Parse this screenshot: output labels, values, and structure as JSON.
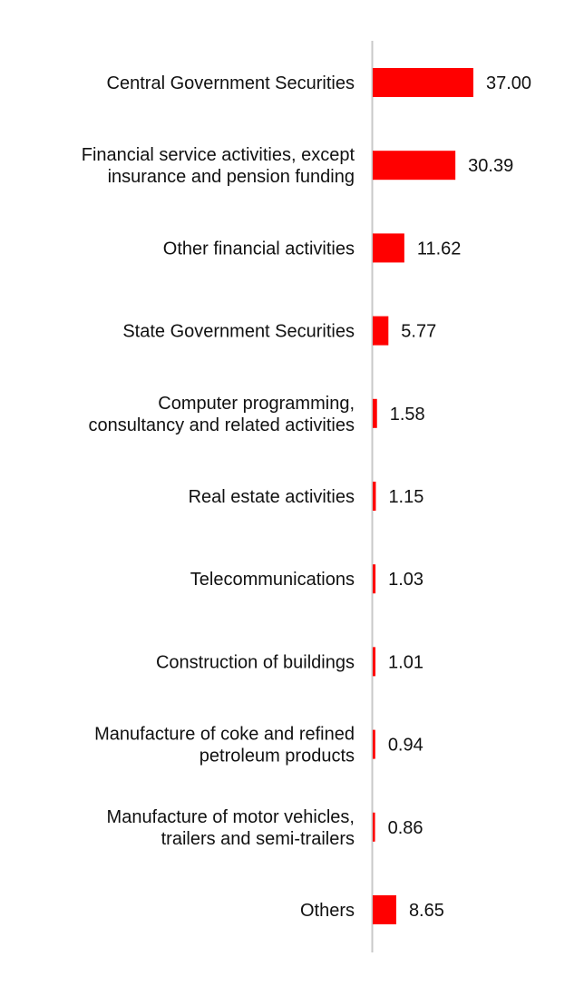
{
  "chart_data": {
    "type": "bar",
    "orientation": "horizontal",
    "title": "",
    "xlabel": "",
    "ylabel": "",
    "grid": false,
    "categories": [
      [
        "Central Government Securities"
      ],
      [
        "Financial service activities, except",
        "insurance and pension funding"
      ],
      [
        "Other financial activities"
      ],
      [
        "State Government Securities"
      ],
      [
        "Computer programming,",
        "consultancy and related activities"
      ],
      [
        "Real estate activities"
      ],
      [
        "Telecommunications"
      ],
      [
        "Construction of buildings"
      ],
      [
        "Manufacture of coke and refined",
        "petroleum products"
      ],
      [
        "Manufacture of motor vehicles,",
        "trailers and semi-trailers"
      ],
      [
        "Others"
      ]
    ],
    "values": [
      37.0,
      30.39,
      11.62,
      5.77,
      1.58,
      1.15,
      1.03,
      1.01,
      0.94,
      0.86,
      8.65
    ],
    "value_labels": [
      "37.00",
      "30.39",
      "11.62",
      "5.77",
      "1.58",
      "1.15",
      "1.03",
      "1.01",
      "0.94",
      "0.86",
      "8.65"
    ],
    "xlim": [
      0,
      37
    ],
    "bar_color": "#ff0000",
    "axis_color": "#c8c8c8"
  }
}
